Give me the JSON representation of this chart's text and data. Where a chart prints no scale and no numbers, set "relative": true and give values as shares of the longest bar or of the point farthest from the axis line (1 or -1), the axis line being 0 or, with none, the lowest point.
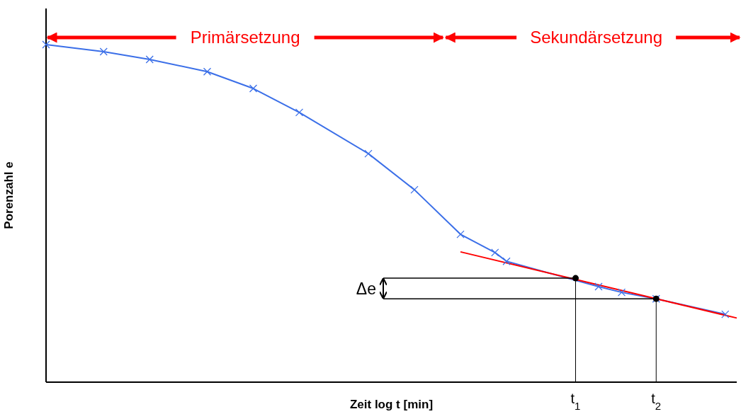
{
  "chart_data": {
    "type": "line",
    "relative": true,
    "xlabel": "Zeit log t [min]",
    "ylabel": "Porenzahl e",
    "categories": [
      null,
      null,
      null,
      null,
      null,
      null,
      null,
      null,
      null,
      null,
      null,
      null,
      null,
      null,
      null,
      null,
      null,
      null,
      null,
      null,
      null,
      null,
      null,
      null,
      null,
      null,
      null,
      null,
      null,
      null,
      null,
      null,
      null,
      null,
      null,
      null,
      null,
      null,
      null,
      null,
      null,
      null,
      null,
      null,
      null,
      null,
      "t$_{1}$",
      null,
      null,
      null,
      null,
      null,
      null,
      "t$_{2}$",
      null,
      null,
      null,
      null,
      null,
      null,
      null
    ],
    "series": [
      {
        "color": "#3b6fe8",
        "marker": "cross",
        "values": [
          1,
          null,
          null,
          null,
          null,
          0.979,
          null,
          null,
          null,
          0.956,
          null,
          null,
          null,
          null,
          0.92,
          null,
          null,
          null,
          0.87,
          null,
          null,
          null,
          0.799,
          null,
          null,
          null,
          null,
          null,
          0.677,
          null,
          null,
          null,
          0.57,
          null,
          null,
          null,
          0.438,
          null,
          null,
          0.384,
          0.358,
          null,
          null,
          null,
          null,
          null,
          null,
          null,
          0.283,
          null,
          0.266,
          null,
          null,
          0.247,
          null,
          null,
          null,
          null,
          null,
          0.201,
          null
        ]
      },
      {
        "type": "line",
        "color": "#ff0000",
        "marker": "none",
        "values": [
          null,
          null,
          null,
          null,
          null,
          null,
          null,
          null,
          null,
          null,
          null,
          null,
          null,
          null,
          null,
          null,
          null,
          null,
          null,
          null,
          null,
          null,
          null,
          null,
          null,
          null,
          null,
          null,
          null,
          null,
          null,
          null,
          null,
          null,
          null,
          null,
          0.386,
          null,
          null,
          null,
          null,
          null,
          null,
          null,
          null,
          null,
          null,
          null,
          null,
          null,
          null,
          null,
          null,
          null,
          null,
          null,
          null,
          null,
          null,
          null,
          0.19
        ]
      },
      {
        "type": "scatter",
        "color": "#000000",
        "marker": "circle",
        "values": [
          null,
          null,
          null,
          null,
          null,
          null,
          null,
          null,
          null,
          null,
          null,
          null,
          null,
          null,
          null,
          null,
          null,
          null,
          null,
          null,
          null,
          null,
          null,
          null,
          null,
          null,
          null,
          null,
          null,
          null,
          null,
          null,
          null,
          null,
          null,
          null,
          null,
          null,
          null,
          null,
          null,
          null,
          null,
          null,
          null,
          null,
          0.308,
          null,
          null,
          null,
          null,
          null,
          null,
          0.247,
          null,
          null,
          null,
          null,
          null,
          null,
          null
        ]
      }
    ],
    "annotations": [
      "Primärsetzung",
      "Sekundärsetzung",
      "Δe"
    ],
    "line_style": "solid"
  }
}
